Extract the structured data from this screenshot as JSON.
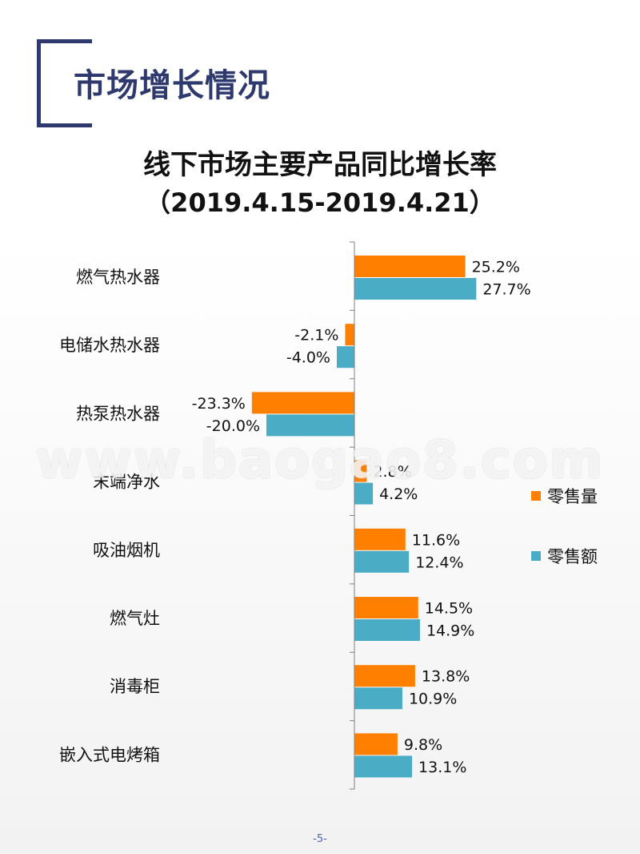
{
  "header": {
    "section_title": "市场增长情况"
  },
  "footer": {
    "page_number": "-5-"
  },
  "watermark": "www.baogao8.com",
  "chart_data": {
    "type": "bar",
    "orientation": "horizontal",
    "title": "线下市场主要产品同比增长率",
    "subtitle": "（2019.4.15-2019.4.21）",
    "categories": [
      "燃气热水器",
      "电储水热水器",
      "热泵热水器",
      "末端净水",
      "吸油烟机",
      "燃气灶",
      "消毒柜",
      "嵌入式电烤箱"
    ],
    "series": [
      {
        "name": "零售量",
        "color": "#ff7f00",
        "values": [
          25.2,
          -2.1,
          -23.3,
          2.8,
          11.6,
          14.5,
          13.8,
          9.8
        ],
        "labels": [
          "25.2%",
          "-2.1%",
          "-23.3%",
          "2.8%",
          "11.6%",
          "14.5%",
          "13.8%",
          "9.8%"
        ]
      },
      {
        "name": "零售额",
        "color": "#4bacc6",
        "values": [
          27.7,
          -4.0,
          -20.0,
          4.2,
          12.4,
          14.9,
          10.9,
          13.1
        ],
        "labels": [
          "27.7%",
          "-4.0%",
          "-20.0%",
          "4.2%",
          "12.4%",
          "14.9%",
          "10.9%",
          "13.1%"
        ]
      }
    ],
    "value_unit": "%",
    "legend_position": "right",
    "grid": false
  }
}
